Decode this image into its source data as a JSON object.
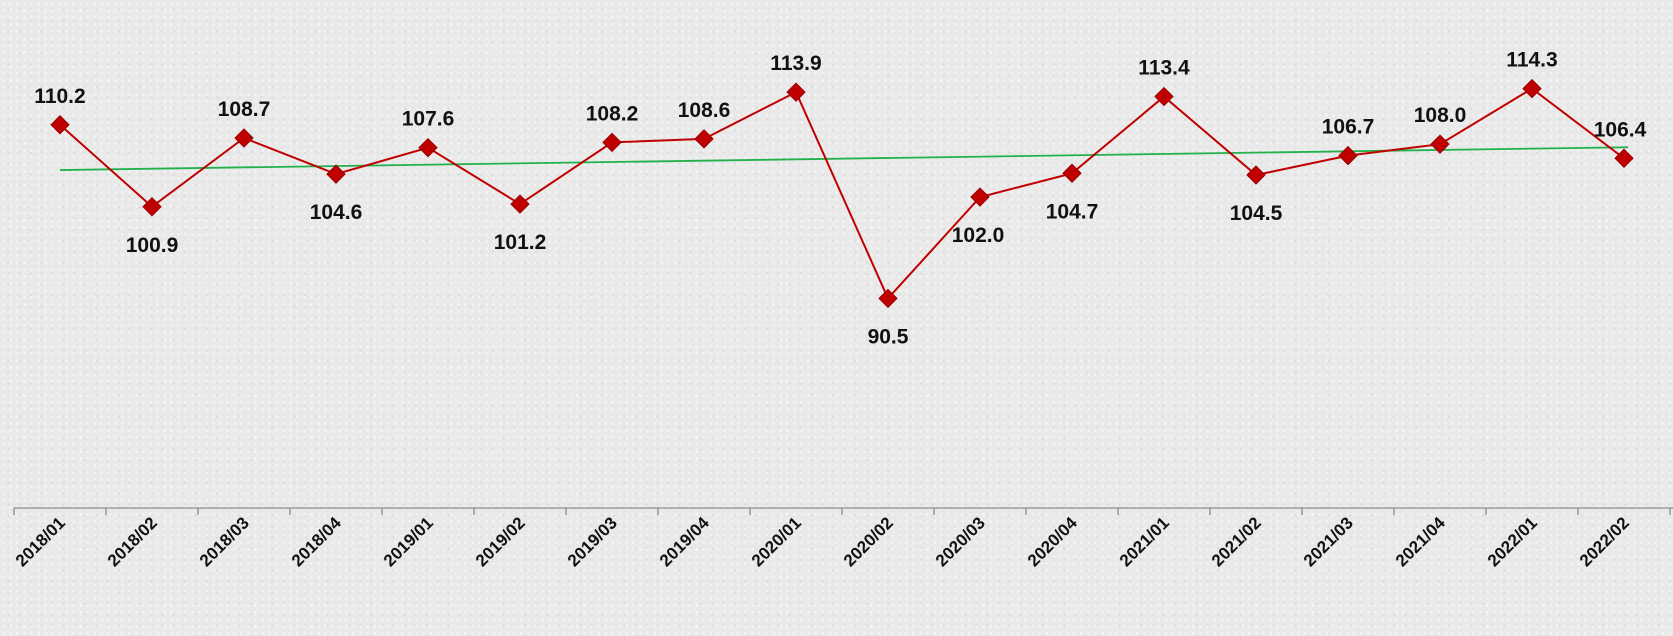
{
  "chart_data": {
    "type": "line",
    "categories": [
      "2018/01",
      "2018/02",
      "2018/03",
      "2018/04",
      "2019/01",
      "2019/02",
      "2019/03",
      "2019/04",
      "2020/01",
      "2020/02",
      "2020/03",
      "2020/04",
      "2021/01",
      "2021/02",
      "2021/03",
      "2021/04",
      "2022/01",
      "2022/02"
    ],
    "series": [
      {
        "values": [
          110.2,
          100.9,
          108.7,
          104.6,
          107.6,
          101.2,
          108.2,
          108.6,
          113.9,
          90.5,
          102.0,
          104.7,
          113.4,
          104.5,
          106.7,
          108.0,
          114.3,
          106.4
        ],
        "labels": [
          "110.2",
          "100.9",
          "108.7",
          "104.6",
          "107.6",
          "101.2",
          "108.2",
          "108.6",
          "113.9",
          "90.5",
          "102.0",
          "104.7",
          "113.4",
          "104.5",
          "106.7",
          "108.0",
          "114.3",
          "106.4"
        ],
        "color": "#c00000",
        "marker": "diamond"
      }
    ],
    "trendline": {
      "type": "linear",
      "color": "#22b14c"
    },
    "ylim": [
      80,
      118
    ],
    "y_axis_visible": false,
    "grid": false,
    "legend": "none",
    "title": "",
    "xlabel": "",
    "ylabel": ""
  }
}
